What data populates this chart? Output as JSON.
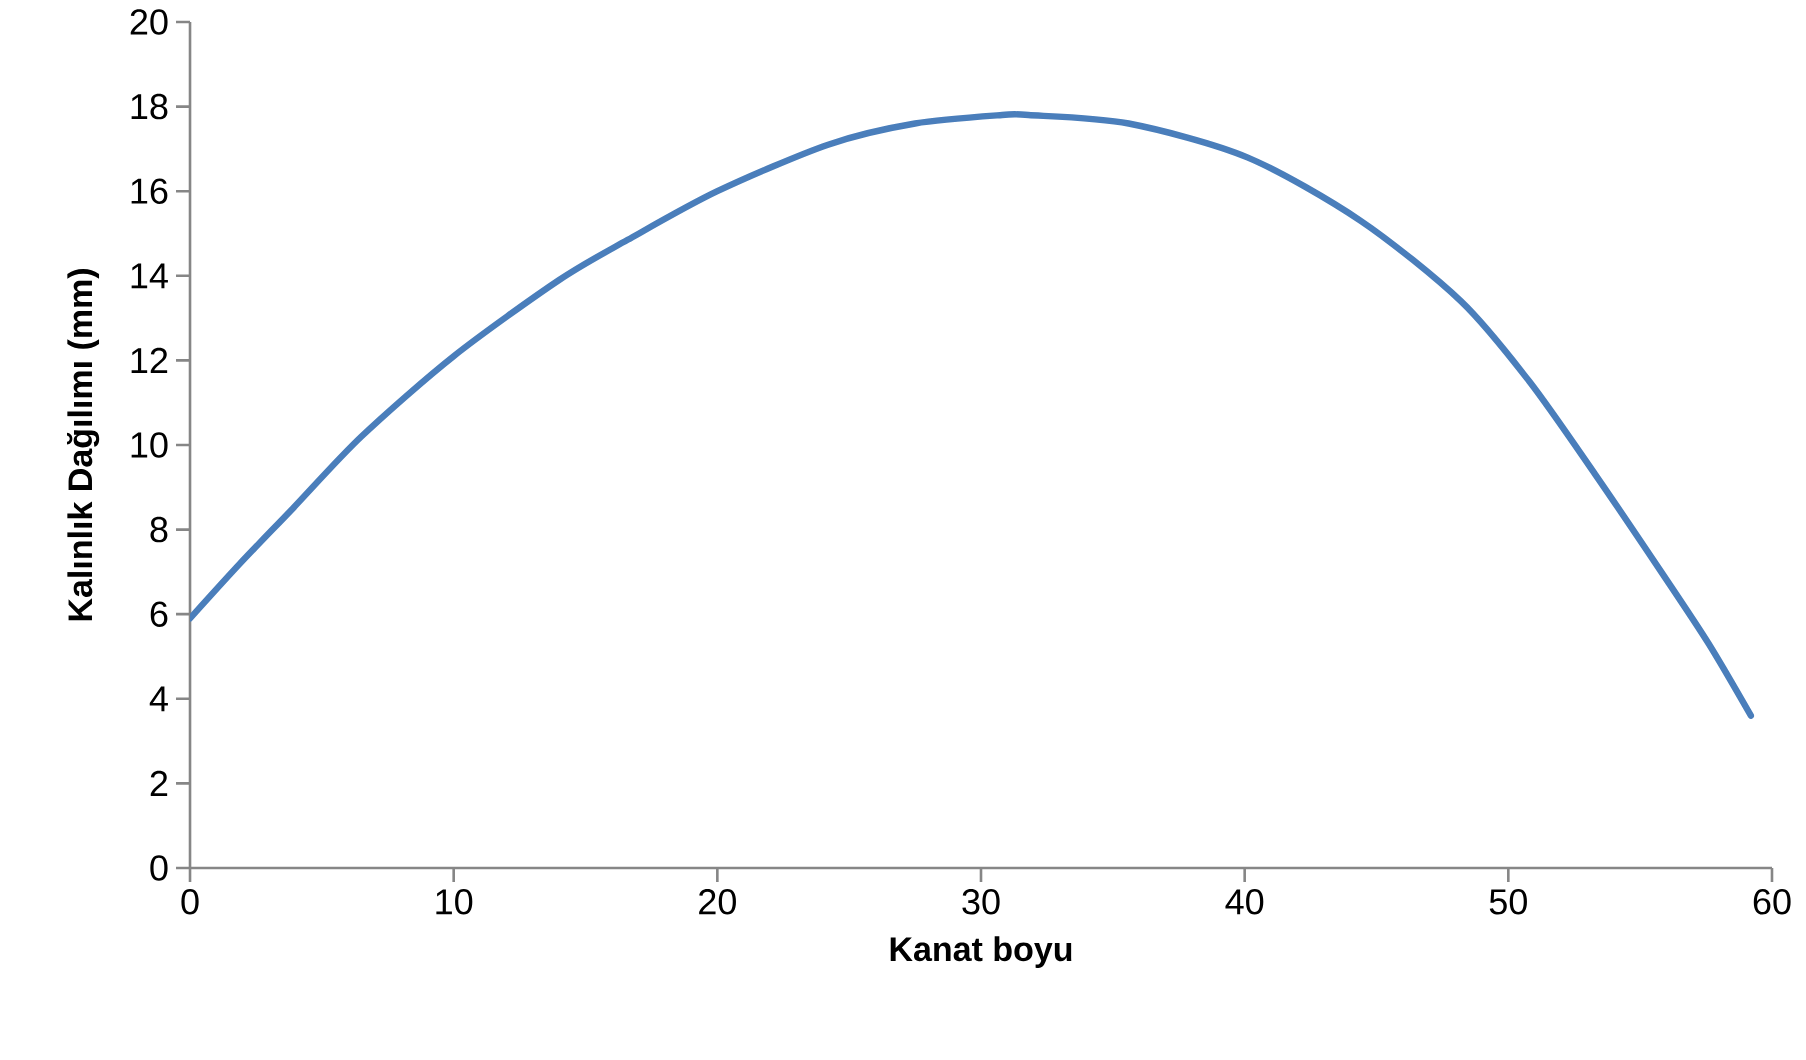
{
  "chart_data": {
    "type": "line",
    "xlabel": "Kanat boyu",
    "ylabel": "Kalınlık Dağılımı (mm)",
    "xlim": [
      0,
      60
    ],
    "xticks": [
      0,
      10,
      20,
      30,
      40,
      50,
      60
    ],
    "ylim": [
      0,
      20
    ],
    "yticks": [
      0,
      2,
      4,
      6,
      8,
      10,
      12,
      14,
      16,
      18,
      20
    ],
    "grid": false,
    "marker": "none",
    "line_style": "solid",
    "series": [
      {
        "color": "#4a7ebb",
        "x": [
          0,
          1.9,
          3.9,
          6.5,
          10,
          14,
          16.6,
          20,
          24.2,
          27.5,
          30.8,
          31.8,
          35.6,
          40.1,
          44.4,
          48.2,
          50.8,
          53.3,
          55.8,
          57.6,
          59.2
        ],
        "values": [
          5.9,
          7.2,
          8.5,
          10.2,
          12.1,
          13.9,
          14.85,
          16.0,
          17.1,
          17.6,
          17.8,
          17.8,
          17.6,
          16.8,
          15.3,
          13.4,
          11.5,
          9.3,
          7.0,
          5.3,
          3.6
        ]
      }
    ]
  }
}
